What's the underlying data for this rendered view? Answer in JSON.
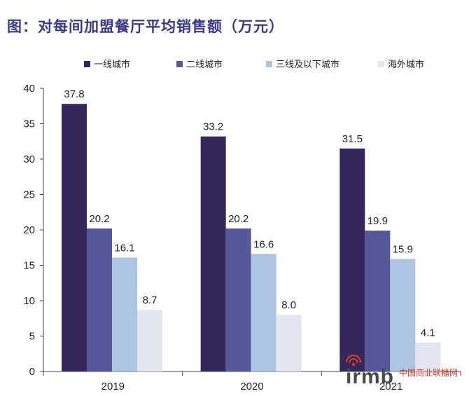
{
  "title": "图：对每间加盟餐厅平均销售额（万元）",
  "watermark": {
    "brand": "irmb",
    "site": "中国商业联播网"
  },
  "chart_data": {
    "type": "bar",
    "categories": [
      "2019",
      "2020",
      "2021"
    ],
    "series": [
      {
        "name": "一线城市",
        "values": [
          37.8,
          33.2,
          31.5
        ],
        "color": "#35265b",
        "labels": [
          "37.8",
          "33.2",
          "31.5"
        ]
      },
      {
        "name": "二线城市",
        "values": [
          20.2,
          20.2,
          19.9
        ],
        "color": "#57589a",
        "labels": [
          "20.2",
          "20.2",
          "19.9"
        ]
      },
      {
        "name": "三线及以下城市",
        "values": [
          16.1,
          16.6,
          15.9
        ],
        "color": "#adc5e3",
        "labels": [
          "16.1",
          "16.6",
          "15.9"
        ]
      },
      {
        "name": "海外城市",
        "values": [
          8.7,
          8.0,
          4.1
        ],
        "color": "#e3e5f0",
        "labels": [
          "8.7",
          "8.0",
          "4.1"
        ]
      }
    ],
    "ylim": [
      0,
      40
    ],
    "yticks": [
      0,
      5,
      10,
      15,
      20,
      25,
      30,
      35,
      40
    ],
    "ytick_labels": [
      "0",
      "5",
      "10",
      "15",
      "20",
      "25",
      "30",
      "35",
      "40"
    ],
    "legend_position": "top",
    "grid": false
  }
}
